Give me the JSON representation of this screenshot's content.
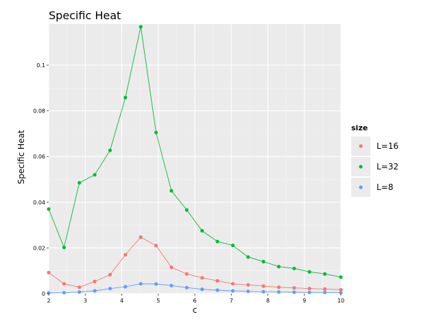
{
  "chart_data": {
    "type": "line",
    "title": "Specific Heat",
    "xlabel": "c",
    "ylabel": "Specific Heat",
    "xlim": [
      2,
      10
    ],
    "ylim": [
      0,
      0.118
    ],
    "x_ticks": [
      2,
      3,
      4,
      5,
      6,
      7,
      8,
      9,
      10
    ],
    "y_ticks": [
      0,
      0.02,
      0.04,
      0.06,
      0.08,
      0.1
    ],
    "y_tick_labels": [
      "0",
      "0.02",
      "0.04",
      "0.06",
      "0.08",
      "0.1"
    ],
    "grid": true,
    "legend": {
      "title": "size",
      "placement": "right"
    },
    "x": [
      2.0,
      2.42,
      2.84,
      3.26,
      3.68,
      4.1,
      4.52,
      4.94,
      5.36,
      5.78,
      6.2,
      6.62,
      7.04,
      7.46,
      7.88,
      8.3,
      8.72,
      9.14,
      9.56,
      10.0
    ],
    "series": [
      {
        "name": "L=16",
        "color": "#F8766D",
        "values": [
          0.0092,
          0.0043,
          0.0028,
          0.0053,
          0.0083,
          0.017,
          0.0247,
          0.021,
          0.0115,
          0.0086,
          0.0069,
          0.0056,
          0.0043,
          0.0038,
          0.0033,
          0.0028,
          0.0025,
          0.0022,
          0.002,
          0.0017
        ]
      },
      {
        "name": "L=32",
        "color": "#00BA38",
        "values": [
          0.037,
          0.0202,
          0.0485,
          0.052,
          0.0627,
          0.0858,
          0.1168,
          0.0705,
          0.045,
          0.0366,
          0.0275,
          0.0228,
          0.0211,
          0.016,
          0.014,
          0.0118,
          0.011,
          0.0095,
          0.0086,
          0.0072
        ]
      },
      {
        "name": "L=8",
        "color": "#619CFF",
        "values": [
          0.0003,
          0.0004,
          0.0007,
          0.0012,
          0.0022,
          0.003,
          0.0043,
          0.0042,
          0.0035,
          0.0026,
          0.0019,
          0.0015,
          0.0012,
          0.001,
          0.0008,
          0.0007,
          0.0006,
          0.0005,
          0.0005,
          0.0004
        ]
      }
    ]
  }
}
